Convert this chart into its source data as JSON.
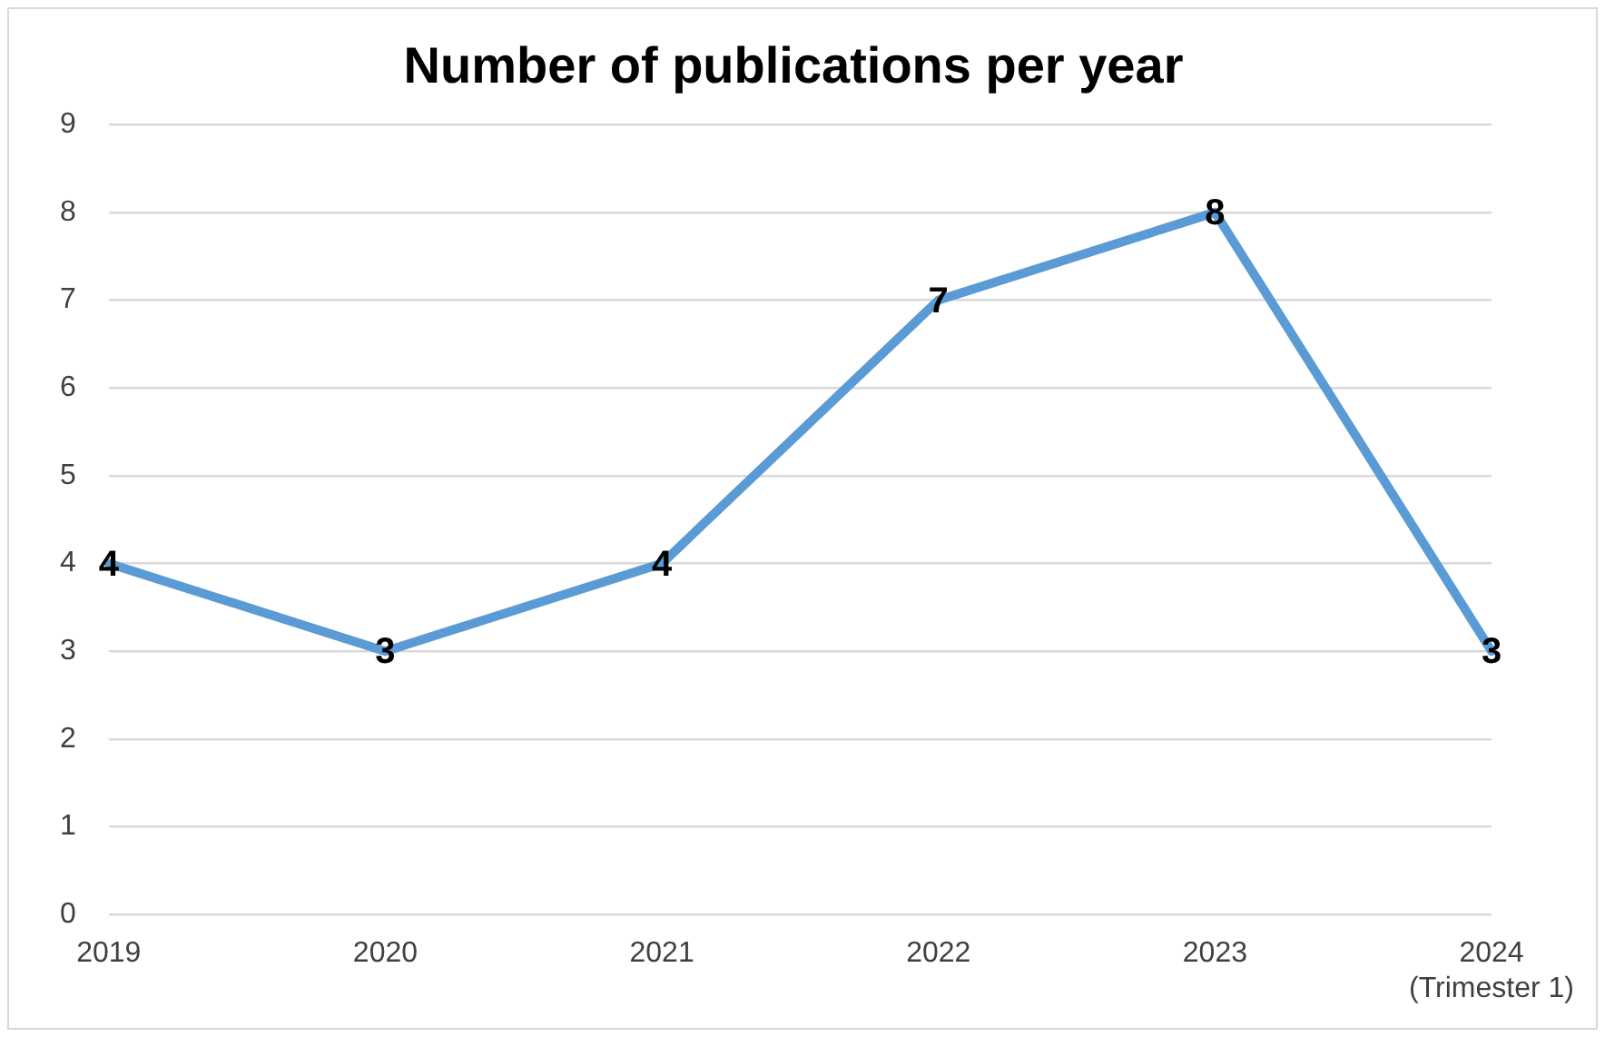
{
  "chart_data": {
    "type": "line",
    "title": "Number of publications per year",
    "categories": [
      "2019",
      "2020",
      "2021",
      "2022",
      "2023",
      "2024\n(Trimester 1)"
    ],
    "series": [
      {
        "color": "#5b9bd5",
        "values": [
          4,
          3,
          4,
          7,
          8,
          3
        ]
      }
    ],
    "ylim": [
      0,
      9
    ],
    "yticks": [
      0,
      1,
      2,
      3,
      4,
      5,
      6,
      7,
      8,
      9
    ],
    "grid": "y",
    "legend": false,
    "marker": "none",
    "line_style": "solid",
    "data_labels": true
  }
}
